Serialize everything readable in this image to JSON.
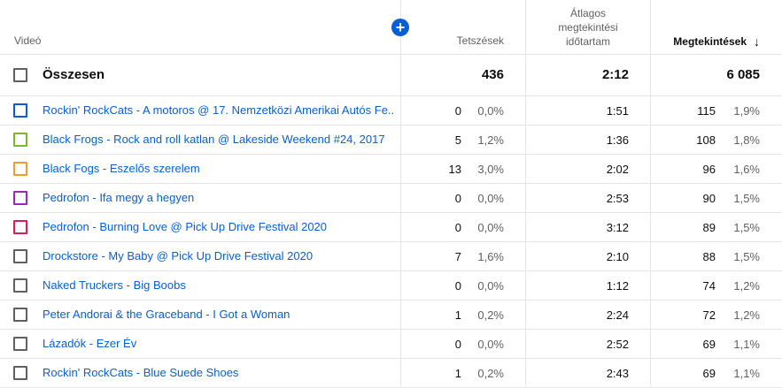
{
  "header": {
    "video": "Videó",
    "likes": "Tetszések",
    "avg_line1": "Átlagos",
    "avg_line2": "megtekintési",
    "avg_line3": "időtartam",
    "views": "Megtekintések",
    "sort_icon": "↓",
    "add_icon": "+"
  },
  "total": {
    "label": "Összesen",
    "likes": "436",
    "avg": "2:12",
    "views": "6 085"
  },
  "rows": [
    {
      "title": "Rockin' RockCats - A motoros @ 17. Nemzetközi Amerikai Autós Fe...",
      "likes": "0",
      "likes_pct": "0,0%",
      "avg": "1:51",
      "views": "115",
      "views_pct": "1,9%",
      "color": "#065fd4"
    },
    {
      "title": "Black Frogs - Rock and roll katlan @ Lakeside Weekend #24, 2017",
      "likes": "5",
      "likes_pct": "1,2%",
      "avg": "1:36",
      "views": "108",
      "views_pct": "1,8%",
      "color": "#7cb82f"
    },
    {
      "title": "Black Fogs - Eszelős szerelem",
      "likes": "13",
      "likes_pct": "3,0%",
      "avg": "2:02",
      "views": "96",
      "views_pct": "1,6%",
      "color": "#f09d2b"
    },
    {
      "title": "Pedrofon - Ifa megy a hegyen",
      "likes": "0",
      "likes_pct": "0,0%",
      "avg": "2:53",
      "views": "90",
      "views_pct": "1,5%",
      "color": "#9c27b0"
    },
    {
      "title": "Pedrofon - Burning Love @ Pick Up Drive Festival 2020",
      "likes": "0",
      "likes_pct": "0,0%",
      "avg": "3:12",
      "views": "89",
      "views_pct": "1,5%",
      "color": "#d81b60"
    },
    {
      "title": "Drockstore - My Baby @ Pick Up Drive Festival 2020",
      "likes": "7",
      "likes_pct": "1,6%",
      "avg": "2:10",
      "views": "88",
      "views_pct": "1,5%",
      "color": "#606060"
    },
    {
      "title": "Naked Truckers - Big Boobs",
      "likes": "0",
      "likes_pct": "0,0%",
      "avg": "1:12",
      "views": "74",
      "views_pct": "1,2%",
      "color": "#606060"
    },
    {
      "title": "Peter Andorai & the Graceband - I Got a Woman",
      "likes": "1",
      "likes_pct": "0,2%",
      "avg": "2:24",
      "views": "72",
      "views_pct": "1,2%",
      "color": "#606060"
    },
    {
      "title": "Lázadók - Ezer Év",
      "likes": "0",
      "likes_pct": "0,0%",
      "avg": "2:52",
      "views": "69",
      "views_pct": "1,1%",
      "color": "#606060"
    },
    {
      "title": "Rockin' RockCats - Blue Suede Shoes",
      "likes": "1",
      "likes_pct": "0,2%",
      "avg": "2:43",
      "views": "69",
      "views_pct": "1,1%",
      "color": "#606060"
    }
  ]
}
